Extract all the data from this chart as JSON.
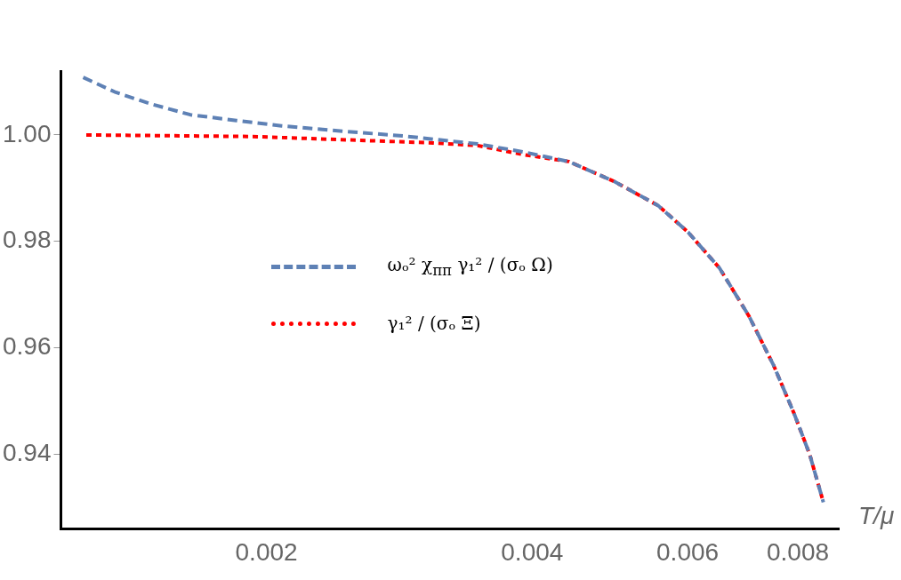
{
  "chart_data": {
    "type": "line",
    "xlabel": "T/μ",
    "log": "x",
    "xlim": [
      0.00117,
      0.0089
    ],
    "xticks": [
      0.002,
      0.004,
      0.006,
      0.008
    ],
    "ylim": [
      0.926,
      1.012
    ],
    "yticks": [
      0.94,
      0.96,
      0.98,
      {
        "value": 1.0,
        "label": "1.00"
      }
    ],
    "grid": false,
    "legend": "center",
    "marker": "none",
    "series": [
      {
        "name": "ωₒ² χ$_{ππ}$ γ₁² / (σₒ Ω)",
        "color": "#5e81b5",
        "line_style": "dashed",
        "x": [
          0.00124,
          0.00135,
          0.00148,
          0.00164,
          0.00185,
          0.00208,
          0.00244,
          0.00286,
          0.00309,
          0.00347,
          0.00391,
          0.0044,
          0.00495,
          0.00556,
          0.00601,
          0.00652,
          0.00704,
          0.00751,
          0.00792,
          0.00825,
          0.00855
        ],
        "values": [
          1.0108,
          1.008,
          1.0058,
          1.0038,
          1.0027,
          1.0017,
          1.0007,
          0.9998,
          0.9992,
          0.9983,
          0.9968,
          0.995,
          0.9913,
          0.9867,
          0.9817,
          0.975,
          0.966,
          0.9567,
          0.9477,
          0.94,
          0.931
        ]
      },
      {
        "name": "γ₁² / (σₒ Ξ)",
        "color": "#ff0000",
        "line_style": "dotted",
        "x": [
          0.00125,
          0.00193,
          0.00309,
          0.00347,
          0.00391,
          0.0044,
          0.00495,
          0.00556,
          0.00601,
          0.00652,
          0.00704,
          0.00751,
          0.00792,
          0.00825,
          0.00855
        ],
        "values": [
          1.0,
          0.9997,
          0.9985,
          0.998,
          0.9963,
          0.995,
          0.9913,
          0.9867,
          0.9817,
          0.975,
          0.966,
          0.9567,
          0.9477,
          0.94,
          0.931
        ]
      }
    ]
  }
}
